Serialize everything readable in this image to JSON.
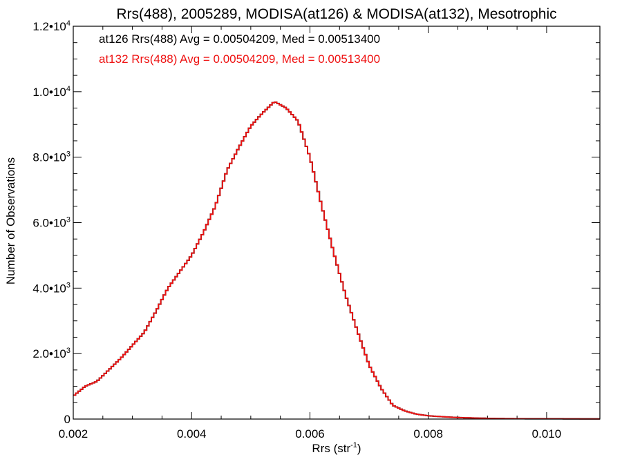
{
  "chart_data": {
    "type": "line",
    "title": "Rrs(488), 2005289, MODISA(at126) & MODISA(at132), Mesotrophic",
    "xlabel_main": "Rrs (str",
    "xlabel_sup": "-1",
    "xlabel_tail": ")",
    "ylabel": "Number of Observations",
    "xlim": [
      0.002,
      0.0109
    ],
    "ylim": [
      0,
      12000
    ],
    "x_ticks": [
      {
        "value": 0.002,
        "label": "0.002"
      },
      {
        "value": 0.004,
        "label": "0.004"
      },
      {
        "value": 0.006,
        "label": "0.006"
      },
      {
        "value": 0.008,
        "label": "0.008"
      },
      {
        "value": 0.01,
        "label": "0.010"
      }
    ],
    "y_ticks": [
      {
        "value": 0,
        "mant": "0",
        "exp": ""
      },
      {
        "value": 2000,
        "mant": "2.0•10",
        "exp": "3"
      },
      {
        "value": 4000,
        "mant": "4.0•10",
        "exp": "3"
      },
      {
        "value": 6000,
        "mant": "6.0•10",
        "exp": "3"
      },
      {
        "value": 8000,
        "mant": "8.0•10",
        "exp": "3"
      },
      {
        "value": 10000,
        "mant": "1.0•10",
        "exp": "4"
      },
      {
        "value": 12000,
        "mant": "1.2•10",
        "exp": "4"
      }
    ],
    "legend_placement": "top-left",
    "series": [
      {
        "name": "at126",
        "color": "#000000",
        "legend": "at126 Rrs(488) Avg = 0.00504209, Med = 0.00513400"
      },
      {
        "name": "at132",
        "color": "#ee1111",
        "legend": "at132 Rrs(488) Avg = 0.00504209, Med = 0.00513400"
      }
    ],
    "x": [
      0.002,
      0.0022,
      0.0024,
      0.0026,
      0.0028,
      0.003,
      0.0032,
      0.0034,
      0.0036,
      0.0038,
      0.004,
      0.0042,
      0.0044,
      0.0046,
      0.0048,
      0.005,
      0.0052,
      0.0054,
      0.0056,
      0.0058,
      0.006,
      0.0062,
      0.0064,
      0.0066,
      0.0068,
      0.007,
      0.0072,
      0.0074,
      0.0076,
      0.0078,
      0.008,
      0.0082,
      0.0084,
      0.0086,
      0.0088,
      0.009,
      0.0092,
      0.0094,
      0.0096,
      0.0098,
      0.01,
      0.0102,
      0.0104,
      0.0106,
      0.0108,
      0.0109
    ],
    "values": [
      700,
      1000,
      1150,
      1500,
      1850,
      2250,
      2650,
      3300,
      4000,
      4500,
      5000,
      5700,
      6500,
      7600,
      8300,
      8950,
      9350,
      9700,
      9500,
      9100,
      8000,
      6500,
      5100,
      3800,
      2700,
      1650,
      950,
      420,
      250,
      150,
      100,
      75,
      55,
      40,
      30,
      22,
      15,
      12,
      10,
      8,
      8,
      8,
      6,
      5,
      5,
      5
    ]
  }
}
